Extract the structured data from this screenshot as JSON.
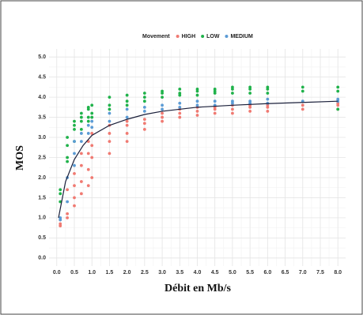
{
  "chart_data": {
    "type": "scatter",
    "xlabel": "Débit en Mb/s",
    "ylabel": "MOS",
    "legend_title": "Movement",
    "xlim": [
      -0.22,
      8.22
    ],
    "ylim": [
      -0.2,
      5.2
    ],
    "grid": true,
    "xticks": [
      {
        "value": 0,
        "label": "0.0"
      },
      {
        "value": 0.5,
        "label": "0.5"
      },
      {
        "value": 1,
        "label": "1.0"
      },
      {
        "value": 1.5,
        "label": "1.5"
      },
      {
        "value": 2,
        "label": "2.0"
      },
      {
        "value": 2.5,
        "label": "2.5"
      },
      {
        "value": 3,
        "label": "3.0"
      },
      {
        "value": 3.5,
        "label": "3.5"
      },
      {
        "value": 4,
        "label": "4.0"
      },
      {
        "value": 4.5,
        "label": "4.5"
      },
      {
        "value": 5,
        "label": "5.0"
      },
      {
        "value": 5.5,
        "label": "5.5"
      },
      {
        "value": 6,
        "label": "6.0"
      },
      {
        "value": 6.5,
        "label": "6.5"
      },
      {
        "value": 7,
        "label": "7.0"
      },
      {
        "value": 7.5,
        "label": "7.5"
      },
      {
        "value": 8,
        "label": "8.0"
      }
    ],
    "yticks": [
      {
        "value": 0,
        "label": "0.0"
      },
      {
        "value": 0.5,
        "label": "0.5"
      },
      {
        "value": 1,
        "label": "1.0"
      },
      {
        "value": 1.5,
        "label": "1.5"
      },
      {
        "value": 2,
        "label": "2.0"
      },
      {
        "value": 2.5,
        "label": "2.5"
      },
      {
        "value": 3,
        "label": "3.0"
      },
      {
        "value": 3.5,
        "label": "3.5"
      },
      {
        "value": 4,
        "label": "4.0"
      },
      {
        "value": 4.5,
        "label": "4.5"
      },
      {
        "value": 5,
        "label": "5.0"
      }
    ],
    "series": [
      {
        "name": "HIGH",
        "color": "#f07a72",
        "x": [
          0.1,
          0.1,
          0.1,
          0.3,
          0.3,
          0.3,
          0.5,
          0.5,
          0.5,
          0.5,
          0.7,
          0.7,
          0.7,
          0.7,
          0.9,
          0.9,
          0.9,
          0.9,
          1,
          1,
          1,
          1,
          1.5,
          1.5,
          1.5,
          1.5,
          2,
          2,
          2,
          2,
          2.5,
          2.5,
          2.5,
          3,
          3,
          3,
          3.5,
          3.5,
          3.5,
          4,
          4,
          4,
          4.5,
          4.5,
          4.5,
          5,
          5,
          5,
          5.5,
          5.5,
          5.5,
          6,
          6,
          6,
          7,
          7,
          8,
          8,
          8
        ],
        "values": [
          0.8,
          0.85,
          0.95,
          1.0,
          1.1,
          1.7,
          1.3,
          1.5,
          1.8,
          2.1,
          1.6,
          1.9,
          2.3,
          2.6,
          1.8,
          2.2,
          2.6,
          2.9,
          2.0,
          2.5,
          2.8,
          3.1,
          2.6,
          2.9,
          3.1,
          3.3,
          2.9,
          3.1,
          3.3,
          3.4,
          3.2,
          3.35,
          3.45,
          3.4,
          3.5,
          3.6,
          3.5,
          3.6,
          3.7,
          3.55,
          3.65,
          3.75,
          3.6,
          3.7,
          3.75,
          3.6,
          3.7,
          3.8,
          3.65,
          3.75,
          3.8,
          3.65,
          3.75,
          3.8,
          3.7,
          3.8,
          3.7,
          3.8,
          3.85
        ]
      },
      {
        "name": "LOW",
        "color": "#1fb24a",
        "x": [
          0.1,
          0.1,
          0.1,
          0.3,
          0.3,
          0.3,
          0.3,
          0.5,
          0.5,
          0.5,
          0.5,
          0.7,
          0.7,
          0.7,
          0.7,
          0.9,
          0.9,
          0.9,
          0.9,
          1,
          1,
          1,
          1.5,
          1.5,
          1.5,
          2,
          2,
          2,
          2.5,
          2.5,
          2.5,
          3,
          3,
          3,
          3.5,
          3.5,
          3.5,
          4,
          4,
          4,
          4.5,
          4.5,
          4.5,
          5,
          5,
          5,
          5.5,
          5.5,
          5.5,
          6,
          6,
          6,
          7,
          7,
          8,
          8,
          8
        ],
        "values": [
          1.4,
          1.6,
          1.7,
          2.4,
          2.5,
          2.8,
          3.0,
          2.9,
          3.2,
          3.3,
          3.4,
          3.2,
          3.4,
          3.5,
          3.6,
          3.4,
          3.5,
          3.7,
          3.75,
          3.5,
          3.6,
          3.8,
          3.7,
          3.8,
          4.0,
          3.8,
          3.9,
          4.05,
          3.9,
          4.0,
          4.1,
          4.0,
          4.1,
          4.15,
          4.05,
          4.1,
          4.2,
          4.05,
          4.15,
          4.2,
          4.1,
          4.15,
          4.2,
          4.1,
          4.2,
          4.25,
          4.1,
          4.2,
          4.25,
          4.1,
          4.2,
          4.25,
          4.15,
          4.25,
          3.7,
          4.15,
          4.25
        ]
      },
      {
        "name": "MEDIUM",
        "color": "#5b9bd5",
        "x": [
          0.1,
          0.1,
          0.3,
          0.3,
          0.5,
          0.5,
          0.5,
          0.7,
          0.7,
          0.9,
          0.9,
          1,
          1,
          1.5,
          1.5,
          2,
          2,
          2.5,
          2.5,
          3,
          3,
          3.5,
          3.5,
          4,
          4,
          4.5,
          4.5,
          5,
          5,
          5.5,
          5.5,
          6,
          6,
          7,
          8,
          8
        ],
        "values": [
          0.95,
          1.0,
          1.4,
          2.0,
          2.3,
          2.6,
          2.9,
          2.9,
          3.1,
          3.1,
          3.3,
          3.25,
          3.4,
          3.4,
          3.6,
          3.5,
          3.7,
          3.65,
          3.75,
          3.7,
          3.8,
          3.75,
          3.85,
          3.8,
          3.9,
          3.8,
          3.9,
          3.85,
          3.9,
          3.85,
          3.9,
          3.85,
          3.95,
          3.9,
          3.9,
          3.95
        ]
      }
    ],
    "fit": {
      "color": "#1a1f3a",
      "x": [
        0.05,
        0.25,
        0.5,
        0.75,
        1,
        1.5,
        2,
        2.5,
        3,
        4,
        5,
        6,
        7,
        8
      ],
      "values": [
        1.0,
        1.9,
        2.45,
        2.8,
        3.05,
        3.3,
        3.45,
        3.57,
        3.65,
        3.75,
        3.8,
        3.84,
        3.87,
        3.9
      ]
    }
  }
}
